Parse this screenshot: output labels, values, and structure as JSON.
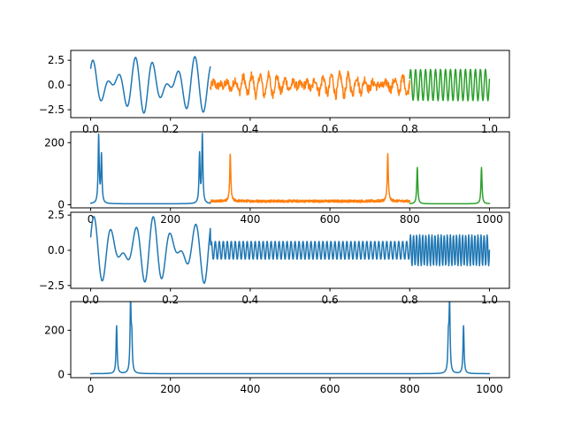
{
  "chart_data": [
    {
      "type": "line",
      "xlim": [
        -0.05,
        1.05
      ],
      "ylim": [
        -3.3,
        3.5
      ],
      "xticks": [
        0.0,
        0.2,
        0.4,
        0.6,
        0.8,
        1.0
      ],
      "xtick_labels": [
        "0.0",
        "0.2",
        "0.4",
        "0.6",
        "0.8",
        "1.0"
      ],
      "yticks": [
        -2.5,
        0.0,
        2.5
      ],
      "ytick_labels": [
        "−2.5",
        "0.0",
        "2.5"
      ],
      "series": [
        {
          "color": "#1f77b4",
          "x_range": [
            0.0,
            0.3
          ],
          "points": 300,
          "components": [
            {
              "freq": 20,
              "amp": 1.5,
              "phase": 0.3
            },
            {
              "freq": 27,
              "amp": 1.4,
              "phase": 1.1
            }
          ]
        },
        {
          "color": "#ff7f0e",
          "x_range": [
            0.3,
            0.8
          ],
          "points": 500,
          "components": [
            {
              "freq": 50,
              "amp": 0.55,
              "phase": 0.0
            },
            {
              "freq": 45,
              "amp": 0.5,
              "phase": 0.8
            }
          ],
          "noise_amp": 0.45
        },
        {
          "color": "#2ca02c",
          "x_range": [
            0.8,
            1.0
          ],
          "points": 200,
          "components": [
            {
              "freq": 80,
              "amp": 1.5,
              "phase": 0.4
            },
            {
              "freq": 79,
              "amp": 0.1,
              "phase": 0.0
            }
          ]
        }
      ]
    },
    {
      "type": "line",
      "xlim": [
        -50,
        1050
      ],
      "ylim": [
        -10,
        235
      ],
      "xticks": [
        0,
        200,
        400,
        600,
        800,
        1000
      ],
      "xtick_labels": [
        "0",
        "200",
        "400",
        "600",
        "800",
        "1000"
      ],
      "yticks": [
        0,
        200
      ],
      "ytick_labels": [
        "0",
        "200"
      ],
      "series": [
        {
          "color": "#1f77b4",
          "x_range": [
            0,
            300
          ],
          "baseline": 3,
          "peaks": [
            {
              "x": 20,
              "y": 220
            },
            {
              "x": 27,
              "y": 157
            },
            {
              "x": 273,
              "y": 160
            },
            {
              "x": 280,
              "y": 222
            }
          ]
        },
        {
          "color": "#ff7f0e",
          "x_range": [
            300,
            800
          ],
          "baseline": 10,
          "noise_amp": 8,
          "peaks": [
            {
              "x": 350,
              "y": 160
            },
            {
              "x": 745,
              "y": 162
            }
          ]
        },
        {
          "color": "#2ca02c",
          "x_range": [
            800,
            1000
          ],
          "baseline": 3,
          "peaks": [
            {
              "x": 819,
              "y": 120
            },
            {
              "x": 980,
              "y": 120
            }
          ]
        }
      ]
    },
    {
      "type": "line",
      "xlim": [
        -0.05,
        1.05
      ],
      "ylim": [
        -2.7,
        2.7
      ],
      "xticks": [
        0.0,
        0.2,
        0.4,
        0.6,
        0.8,
        1.0
      ],
      "xtick_labels": [
        "0.0",
        "0.2",
        "0.4",
        "0.6",
        "0.8",
        "1.0"
      ],
      "yticks": [
        -2.5,
        0.0,
        2.5
      ],
      "ytick_labels": [
        "−2.5",
        "0.0",
        "2.5"
      ],
      "series": [
        {
          "color": "#1f77b4",
          "x_range": [
            0.0,
            1.0
          ],
          "points": 1000,
          "segments": [
            {
              "x_range": [
                0.0,
                0.3
              ],
              "components": [
                {
                  "freq": 20,
                  "amp": 1.3,
                  "phase": 0.6
                },
                {
                  "freq": 27,
                  "amp": 1.1,
                  "phase": 0.2
                }
              ]
            },
            {
              "x_range": [
                0.3,
                0.8
              ],
              "components": [
                {
                  "freq": 100,
                  "amp": 0.65,
                  "phase": 0.0
                }
              ]
            },
            {
              "x_range": [
                0.8,
                1.0
              ],
              "components": [
                {
                  "freq": 130,
                  "amp": 1.1,
                  "phase": 0.0
                }
              ]
            }
          ]
        }
      ]
    },
    {
      "type": "line",
      "xlim": [
        -50,
        1050
      ],
      "ylim": [
        -15,
        330
      ],
      "xticks": [
        0,
        200,
        400,
        600,
        800,
        1000
      ],
      "xtick_labels": [
        "0",
        "200",
        "400",
        "600",
        "800",
        "1000"
      ],
      "yticks": [
        0,
        200
      ],
      "ytick_labels": [
        "0",
        "200"
      ],
      "series": [
        {
          "color": "#1f77b4",
          "x_range": [
            0,
            1000
          ],
          "baseline": 3,
          "peaks": [
            {
              "x": 65,
              "y": 220
            },
            {
              "x": 100,
              "y": 315
            },
            {
              "x": 103,
              "y": 150
            },
            {
              "x": 897,
              "y": 150
            },
            {
              "x": 900,
              "y": 315
            },
            {
              "x": 935,
              "y": 220
            }
          ]
        }
      ]
    }
  ]
}
